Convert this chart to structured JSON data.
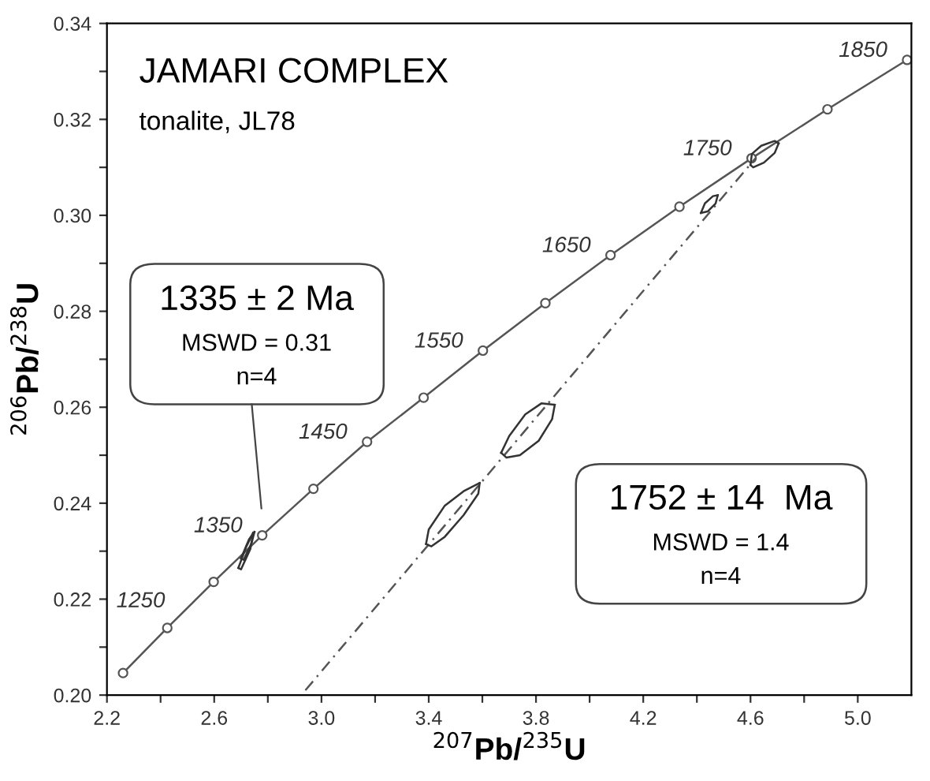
{
  "chart_data": {
    "type": "line",
    "title": "JAMARI COMPLEX",
    "subtitle": "tonalite, JL78",
    "xlabel": "$^{207}$Pb/$^{235}$U",
    "ylabel": "$^{206}$Pb/$^{238}$U",
    "xlim": [
      2.2,
      5.2
    ],
    "ylim": [
      0.2,
      0.34
    ],
    "xticks": [
      2.2,
      {
        "value": 2.4,
        "label": null
      },
      2.6,
      {
        "value": 2.8,
        "label": null
      },
      {
        "value": 3.0,
        "label": "3.0"
      },
      {
        "value": 3.2,
        "label": null
      },
      3.4,
      {
        "value": 3.6,
        "label": null
      },
      3.8,
      {
        "value": 4.0,
        "label": null
      },
      4.2,
      {
        "value": 4.4,
        "label": null
      },
      4.6,
      {
        "value": 4.8,
        "label": null
      },
      {
        "value": 5.0,
        "label": "5.0"
      }
    ],
    "yticks": [
      {
        "value": 0.2,
        "label": "0.20"
      },
      {
        "value": 0.21,
        "label": null
      },
      {
        "value": 0.22,
        "label": "0.22"
      },
      {
        "value": 0.23,
        "label": null
      },
      {
        "value": 0.24,
        "label": "0.24"
      },
      {
        "value": 0.25,
        "label": null
      },
      {
        "value": 0.26,
        "label": "0.26"
      },
      {
        "value": 0.27,
        "label": null
      },
      {
        "value": 0.28,
        "label": "0.28"
      },
      {
        "value": 0.29,
        "label": null
      },
      {
        "value": 0.3,
        "label": "0.30"
      },
      {
        "value": 0.31,
        "label": null
      },
      {
        "value": 0.32,
        "label": "0.32"
      },
      {
        "value": 0.33,
        "label": null
      },
      {
        "value": 0.34,
        "label": "0.34"
      }
    ],
    "grid": false,
    "legend": false,
    "series": [
      {
        "color": "#555555",
        "marker": "circle",
        "line_style": "solid",
        "x": [
          2.26,
          2.425,
          2.598,
          2.779,
          2.97,
          3.17,
          3.381,
          3.602,
          3.835,
          4.078,
          4.335,
          4.604,
          4.887,
          5.184
        ],
        "values": [
          0.2046,
          0.214,
          0.2236,
          0.2333,
          0.243,
          0.2528,
          0.262,
          0.2718,
          0.2817,
          0.2917,
          0.3018,
          0.3119,
          0.3221,
          0.3324
        ]
      },
      {
        "color": "#555555",
        "marker": "none",
        "line_style": "dashed",
        "x": [
          2.94,
          4.62
        ],
        "values": [
          0.201,
          0.312
        ]
      },
      {
        "color": "#333333",
        "marker": "none",
        "line_style": "solid",
        "x": [
          3.67,
          3.7,
          3.76,
          3.82,
          3.87
        ],
        "values": [
          0.2505,
          0.254,
          0.2585,
          0.2608,
          0.2605
        ]
      },
      {
        "color": "#333333",
        "marker": "none",
        "line_style": "solid",
        "x": [
          3.67,
          3.69,
          3.74,
          3.81,
          3.86,
          3.87
        ],
        "values": [
          0.2505,
          0.2495,
          0.25,
          0.253,
          0.2575,
          0.2605
        ]
      },
      {
        "color": "#333333",
        "marker": "none",
        "line_style": "solid",
        "x": [
          3.39,
          3.4,
          3.46,
          3.53,
          3.59
        ],
        "values": [
          0.2315,
          0.2345,
          0.2395,
          0.2425,
          0.2442
        ]
      },
      {
        "color": "#333333",
        "marker": "none",
        "line_style": "solid",
        "x": [
          3.39,
          3.41,
          3.46,
          3.53,
          3.585,
          3.59
        ],
        "values": [
          0.2315,
          0.231,
          0.233,
          0.2375,
          0.242,
          0.2442
        ]
      },
      {
        "color": "#333333",
        "marker": "none",
        "line_style": "solid",
        "x": [
          4.415,
          4.43,
          4.46,
          4.478
        ],
        "values": [
          0.3005,
          0.3025,
          0.304,
          0.3042
        ]
      },
      {
        "color": "#333333",
        "marker": "none",
        "line_style": "solid",
        "x": [
          4.415,
          4.44,
          4.47,
          4.478
        ],
        "values": [
          0.3005,
          0.3008,
          0.3025,
          0.3042
        ]
      },
      {
        "color": "#333333",
        "marker": "none",
        "line_style": "solid",
        "x": [
          4.6,
          4.605,
          4.64,
          4.69,
          4.705
        ],
        "values": [
          0.3105,
          0.3128,
          0.3145,
          0.3155,
          0.315
        ]
      },
      {
        "color": "#333333",
        "marker": "none",
        "line_style": "solid",
        "x": [
          4.6,
          4.61,
          4.65,
          4.69,
          4.705
        ],
        "values": [
          0.3105,
          0.31,
          0.311,
          0.313,
          0.315
        ]
      },
      {
        "color": "#333333",
        "marker": "none",
        "line_style": "solid",
        "x": [
          2.69,
          2.72,
          2.745
        ],
        "values": [
          0.2265,
          0.231,
          0.2338
        ]
      },
      {
        "color": "#333333",
        "marker": "none",
        "line_style": "solid",
        "x": [
          2.69,
          2.7,
          2.735,
          2.745
        ],
        "values": [
          0.2265,
          0.2262,
          0.2305,
          0.2338
        ]
      },
      {
        "color": "#333333",
        "marker": "none",
        "line_style": "solid",
        "x": [
          2.7,
          2.73,
          2.75
        ],
        "values": [
          0.2285,
          0.2325,
          0.234
        ]
      },
      {
        "color": "#333333",
        "marker": "none",
        "line_style": "solid",
        "x": [
          2.7,
          2.71,
          2.74,
          2.75
        ],
        "values": [
          0.2285,
          0.2282,
          0.2318,
          0.234
        ]
      }
    ],
    "annotations": [
      "1335 ± 2 Ma",
      "MSWD = 0.31",
      "n=4",
      "1752 ± 14  Ma",
      "MSWD = 1.4",
      "n=4",
      {
        "text": "1250",
        "x": 2.425,
        "y": 0.214
      },
      {
        "text": "1350",
        "x": 2.779,
        "y": 0.2333
      },
      {
        "text": "1450",
        "x": 3.17,
        "y": 0.2528
      },
      {
        "text": "1550",
        "x": 3.602,
        "y": 0.2718
      },
      {
        "text": "1650",
        "x": 4.078,
        "y": 0.2917
      },
      {
        "text": "1750",
        "x": 4.604,
        "y": 0.3119
      },
      {
        "text": "1850",
        "x": 5.184,
        "y": 0.3324
      }
    ]
  }
}
